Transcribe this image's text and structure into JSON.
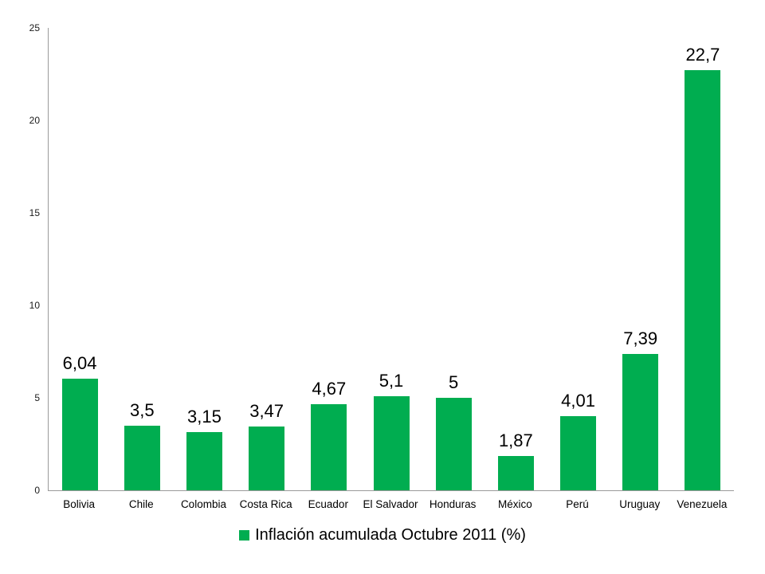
{
  "chart_data": {
    "type": "bar",
    "categories": [
      "Bolivia",
      "Chile",
      "Colombia",
      "Costa Rica",
      "Ecuador",
      "El Salvador",
      "Honduras",
      "México",
      "Perú",
      "Uruguay",
      "Venezuela"
    ],
    "values": [
      6.04,
      3.5,
      3.15,
      3.47,
      4.67,
      5.1,
      5,
      1.87,
      4.01,
      7.39,
      22.7
    ],
    "value_labels": [
      "6,04",
      "3,5",
      "3,15",
      "3,47",
      "4,67",
      "5,1",
      "5",
      "1,87",
      "4,01",
      "7,39",
      "22,7"
    ],
    "title": "",
    "xlabel": "",
    "ylabel": "",
    "ylim": [
      0,
      25
    ],
    "yticks": [
      0,
      5,
      10,
      15,
      20,
      25
    ],
    "grid": false,
    "legend_position": "bottom-center",
    "legend_label": "Inflación acumulada Octubre 2011 (%)",
    "bar_color": "#00AD50",
    "axis_color": "#9a9a9a",
    "text_color": "#000000"
  }
}
